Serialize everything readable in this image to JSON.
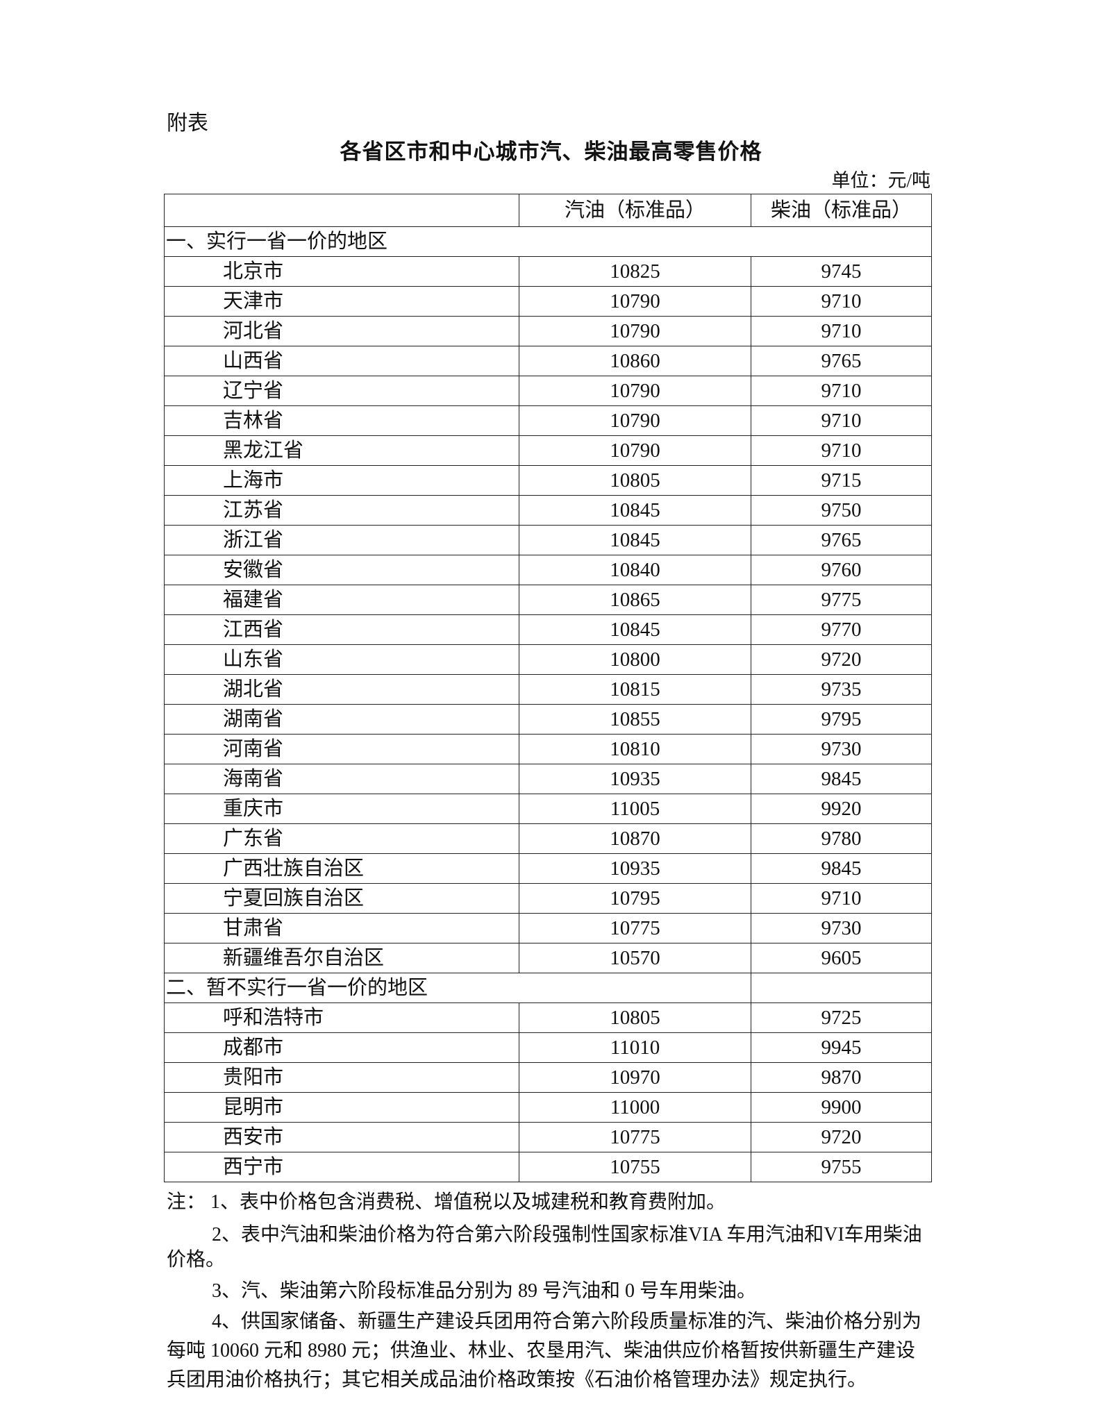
{
  "appendix_label": "附表",
  "title": "各省区市和中心城市汽、柴油最高零售价格",
  "unit": "单位：元/吨",
  "table": {
    "headers": [
      "",
      "汽油（标准品）",
      "柴油（标准品）"
    ],
    "sections": [
      {
        "label": "一、实行一省一价的地区",
        "rows": [
          {
            "region": "北京市",
            "gasoline": "10825",
            "diesel": "9745"
          },
          {
            "region": "天津市",
            "gasoline": "10790",
            "diesel": "9710"
          },
          {
            "region": "河北省",
            "gasoline": "10790",
            "diesel": "9710"
          },
          {
            "region": "山西省",
            "gasoline": "10860",
            "diesel": "9765"
          },
          {
            "region": "辽宁省",
            "gasoline": "10790",
            "diesel": "9710"
          },
          {
            "region": "吉林省",
            "gasoline": "10790",
            "diesel": "9710"
          },
          {
            "region": "黑龙江省",
            "gasoline": "10790",
            "diesel": "9710"
          },
          {
            "region": "上海市",
            "gasoline": "10805",
            "diesel": "9715"
          },
          {
            "region": "江苏省",
            "gasoline": "10845",
            "diesel": "9750"
          },
          {
            "region": "浙江省",
            "gasoline": "10845",
            "diesel": "9765"
          },
          {
            "region": "安徽省",
            "gasoline": "10840",
            "diesel": "9760"
          },
          {
            "region": "福建省",
            "gasoline": "10865",
            "diesel": "9775"
          },
          {
            "region": "江西省",
            "gasoline": "10845",
            "diesel": "9770"
          },
          {
            "region": "山东省",
            "gasoline": "10800",
            "diesel": "9720"
          },
          {
            "region": "湖北省",
            "gasoline": "10815",
            "diesel": "9735"
          },
          {
            "region": "湖南省",
            "gasoline": "10855",
            "diesel": "9795"
          },
          {
            "region": "河南省",
            "gasoline": "10810",
            "diesel": "9730"
          },
          {
            "region": "海南省",
            "gasoline": "10935",
            "diesel": "9845"
          },
          {
            "region": "重庆市",
            "gasoline": "11005",
            "diesel": "9920"
          },
          {
            "region": "广东省",
            "gasoline": "10870",
            "diesel": "9780"
          },
          {
            "region": "广西壮族自治区",
            "gasoline": "10935",
            "diesel": "9845"
          },
          {
            "region": "宁夏回族自治区",
            "gasoline": "10795",
            "diesel": "9710"
          },
          {
            "region": "甘肃省",
            "gasoline": "10775",
            "diesel": "9730"
          },
          {
            "region": "新疆维吾尔自治区",
            "gasoline": "10570",
            "diesel": "9605"
          }
        ]
      },
      {
        "label": "二、暂不实行一省一价的地区",
        "rows": [
          {
            "region": "呼和浩特市",
            "gasoline": "10805",
            "diesel": "9725"
          },
          {
            "region": "成都市",
            "gasoline": "11010",
            "diesel": "9945"
          },
          {
            "region": "贵阳市",
            "gasoline": "10970",
            "diesel": "9870"
          },
          {
            "region": "昆明市",
            "gasoline": "11000",
            "diesel": "9900"
          },
          {
            "region": "西安市",
            "gasoline": "10775",
            "diesel": "9720"
          },
          {
            "region": "西宁市",
            "gasoline": "10755",
            "diesel": "9755"
          }
        ]
      }
    ]
  },
  "notes": {
    "note1": "注：  1、表中价格包含消费税、增值税以及城建税和教育费附加。",
    "note2": "2、表中汽油和柴油价格为符合第六阶段强制性国家标准VIA 车用汽油和VI车用柴油价格。",
    "note3": "3、汽、柴油第六阶段标准品分别为 89 号汽油和 0 号车用柴油。",
    "note4": "4、供国家储备、新疆生产建设兵团用符合第六阶段质量标准的汽、柴油价格分别为每吨 10060 元和 8980 元；供渔业、林业、农垦用汽、柴油供应价格暂按供新疆生产建设兵团用油价格执行；其它相关成品油价格政策按《石油价格管理办法》规定执行。"
  }
}
